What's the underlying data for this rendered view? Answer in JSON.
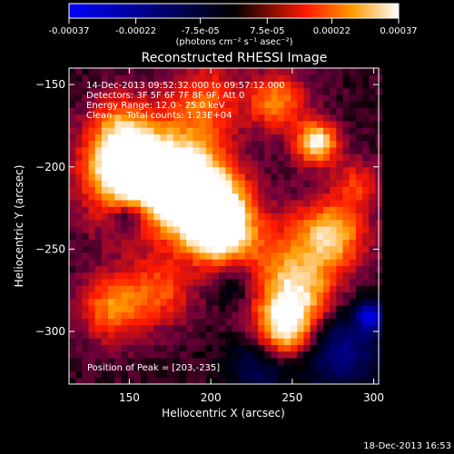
{
  "colorbar": {
    "tick_labels": [
      "-0.00037",
      "-0.00022",
      "-7.5e-05",
      "7.5e-05",
      "0.00022",
      "0.00037"
    ],
    "unit_label": "(photons cm⁻² s⁻¹ asec⁻²)"
  },
  "footer": {
    "timestamp": "18-Dec-2013 16:53"
  },
  "chart_data": {
    "type": "heatmap",
    "title": "Reconstructed RHESSI Image",
    "xlabel": "Heliocentric X (arcsec)",
    "ylabel": "Heliocentric Y (arcsec)",
    "xlim": [
      113,
      303
    ],
    "ylim": [
      -332,
      -140
    ],
    "xticks": [
      150,
      200,
      250,
      300
    ],
    "yticks": [
      -300,
      -250,
      -200,
      -150
    ],
    "clim": [
      -0.00037,
      0.00037
    ],
    "annotations": [
      "14-Dec-2013 09:52:32.000 to 09:57:12.000",
      "Detectors: 3F 5F 6F 7F 8F 9F, Att 0",
      "Energy Range: 12.0 - 25.0 keV",
      "Clean     Total counts: 1.23E+04"
    ],
    "peak_text": "Position of Peak = [203,-235]",
    "blobs": [
      {
        "x": 160,
        "y": -210,
        "w": 22,
        "v": 0.00031
      },
      {
        "x": 145,
        "y": -195,
        "w": 16,
        "v": 0.00028
      },
      {
        "x": 185,
        "y": -205,
        "w": 18,
        "v": 0.00027
      },
      {
        "x": 200,
        "y": -225,
        "w": 16,
        "v": 0.00033
      },
      {
        "x": 205,
        "y": -240,
        "w": 14,
        "v": 0.0003
      },
      {
        "x": 195,
        "y": -160,
        "w": 16,
        "v": 0.00018
      },
      {
        "x": 240,
        "y": -160,
        "w": 12,
        "v": 0.00022
      },
      {
        "x": 265,
        "y": -185,
        "w": 9,
        "v": 0.00035
      },
      {
        "x": 245,
        "y": -260,
        "w": 22,
        "v": 0.00016
      },
      {
        "x": 275,
        "y": -240,
        "w": 14,
        "v": 0.00026
      },
      {
        "x": 255,
        "y": -280,
        "w": 16,
        "v": 0.00022
      },
      {
        "x": 245,
        "y": -300,
        "w": 12,
        "v": 0.0003
      },
      {
        "x": 140,
        "y": -285,
        "w": 14,
        "v": 0.00022
      },
      {
        "x": 170,
        "y": -275,
        "w": 14,
        "v": 0.00016
      },
      {
        "x": 145,
        "y": -170,
        "w": 12,
        "v": 0.00012
      },
      {
        "x": 290,
        "y": -210,
        "w": 10,
        "v": 0.00014
      },
      {
        "x": 150,
        "y": -230,
        "w": 8,
        "v": -0.0002
      },
      {
        "x": 280,
        "y": -310,
        "w": 18,
        "v": -0.00022
      },
      {
        "x": 230,
        "y": -320,
        "w": 14,
        "v": -0.00015
      },
      {
        "x": 215,
        "y": -270,
        "w": 10,
        "v": -0.00012
      },
      {
        "x": 298,
        "y": -290,
        "w": 6,
        "v": -0.0003
      }
    ]
  }
}
